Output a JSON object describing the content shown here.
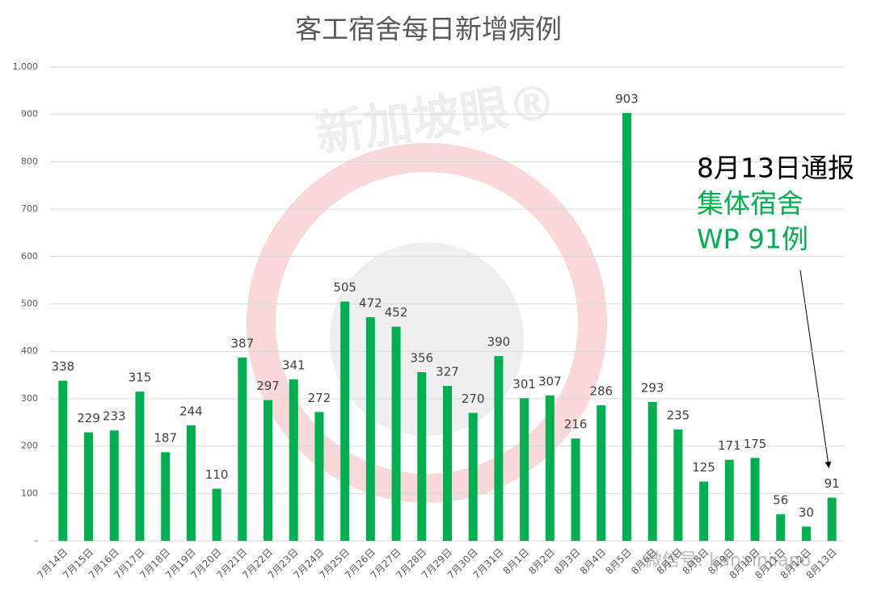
{
  "chart_data": {
    "type": "bar",
    "title": "客工宿舍每日新增病例",
    "categories": [
      "7月14日",
      "7月15日",
      "7月16日",
      "7月17日",
      "7月18日",
      "7月19日",
      "7月20日",
      "7月21日",
      "7月22日",
      "7月23日",
      "7月24日",
      "7月25日",
      "7月26日",
      "7月27日",
      "7月28日",
      "7月29日",
      "7月30日",
      "7月31日",
      "8月1日",
      "8月2日",
      "8月3日",
      "8月4日",
      "8月5日",
      "8月6日",
      "8月7日",
      "8月8日",
      "8月9日",
      "8月10日",
      "8月11日",
      "8月12日",
      "8月13日"
    ],
    "values": [
      338,
      229,
      233,
      315,
      187,
      244,
      110,
      387,
      297,
      341,
      272,
      505,
      472,
      452,
      356,
      327,
      270,
      390,
      301,
      307,
      216,
      286,
      903,
      293,
      235,
      125,
      171,
      175,
      56,
      30,
      91
    ],
    "color": "#00b050",
    "ylim": [
      0,
      1000
    ],
    "yticks": [
      {
        "value": 0,
        "label": "-"
      },
      100,
      200,
      300,
      400,
      500,
      600,
      700,
      800,
      900,
      {
        "value": 1000,
        "label": "1,000"
      }
    ],
    "grid": true,
    "annotation": {
      "lines": [
        {
          "text": "8月13日通报",
          "color": "#000000"
        },
        {
          "text": "集体宿舍",
          "color": "#00b050"
        },
        {
          "text": "WP 91例",
          "color": "#00b050"
        }
      ]
    },
    "watermarks": [
      "新加坡眼®",
      "微信号: kanxinjiapo"
    ]
  }
}
